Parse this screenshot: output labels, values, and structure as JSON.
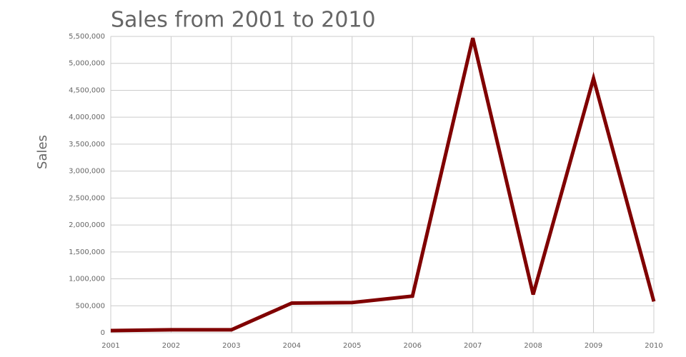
{
  "chart_data": {
    "type": "line",
    "title": "Sales from 2001 to 2010",
    "y_label": "Sales",
    "x": [
      2001,
      2002,
      2003,
      2004,
      2005,
      2006,
      2007,
      2008,
      2009,
      2010
    ],
    "series": [
      {
        "name": "Sales",
        "color": "#800000",
        "values": [
          40000,
          55000,
          55000,
          550000,
          560000,
          680000,
          5470000,
          710000,
          4720000,
          580000
        ]
      }
    ],
    "xlim": [
      2001,
      2010
    ],
    "xticks": [
      2001,
      2002,
      2003,
      2004,
      2005,
      2006,
      2007,
      2008,
      2009,
      2010
    ],
    "ylim": [
      0,
      5500000
    ],
    "yticks": [
      0,
      {
        "value": 500000,
        "label": "500,000"
      },
      {
        "value": 1000000,
        "label": "1,000,000"
      },
      {
        "value": 1500000,
        "label": "1,500,000"
      },
      {
        "value": 2000000,
        "label": "2,000,000"
      },
      {
        "value": 2500000,
        "label": "2,500,000"
      },
      {
        "value": 3000000,
        "label": "3,000,000"
      },
      {
        "value": 3500000,
        "label": "3,500,000"
      },
      {
        "value": 4000000,
        "label": "4,000,000"
      },
      {
        "value": 4500000,
        "label": "4,500,000"
      },
      {
        "value": 5000000,
        "label": "5,000,000"
      },
      {
        "value": 5500000,
        "label": "5,500,000"
      }
    ],
    "grid": true
  }
}
